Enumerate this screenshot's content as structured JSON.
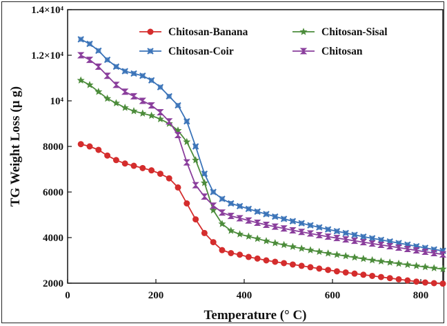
{
  "chart_data": {
    "type": "line",
    "title": "",
    "xlabel": "Temperature (° C)",
    "ylabel": "TG Weight Loss (µ g)",
    "xlim": [
      0,
      850
    ],
    "ylim": [
      2000,
      14000
    ],
    "xticks": [
      0,
      200,
      400,
      600,
      800
    ],
    "xtick_labels": [
      "0",
      "200",
      "400",
      "600",
      "800"
    ],
    "yticks": [
      2000,
      4000,
      6000,
      8000,
      10000,
      12000,
      14000
    ],
    "ytick_labels": [
      "2000",
      "4000",
      "6000",
      "8000",
      "10⁴",
      "1.2×10⁴",
      "1.4×10⁴"
    ],
    "grid": false,
    "legend_position": "top-right",
    "series": [
      {
        "name": "Chitosan-Banana",
        "color": "#d42d2d",
        "marker": "circle",
        "points": [
          [
            30,
            8100
          ],
          [
            50,
            8000
          ],
          [
            70,
            7850
          ],
          [
            90,
            7600
          ],
          [
            110,
            7400
          ],
          [
            130,
            7250
          ],
          [
            150,
            7150
          ],
          [
            170,
            7050
          ],
          [
            190,
            6950
          ],
          [
            210,
            6800
          ],
          [
            230,
            6600
          ],
          [
            250,
            6200
          ],
          [
            270,
            5500
          ],
          [
            290,
            4800
          ],
          [
            310,
            4200
          ],
          [
            330,
            3800
          ],
          [
            350,
            3450
          ],
          [
            370,
            3320
          ],
          [
            390,
            3250
          ],
          [
            410,
            3150
          ],
          [
            430,
            3080
          ],
          [
            450,
            3000
          ],
          [
            470,
            2940
          ],
          [
            490,
            2880
          ],
          [
            510,
            2820
          ],
          [
            530,
            2760
          ],
          [
            550,
            2700
          ],
          [
            570,
            2640
          ],
          [
            590,
            2580
          ],
          [
            610,
            2520
          ],
          [
            630,
            2470
          ],
          [
            650,
            2420
          ],
          [
            670,
            2370
          ],
          [
            690,
            2320
          ],
          [
            710,
            2270
          ],
          [
            730,
            2220
          ],
          [
            750,
            2170
          ],
          [
            770,
            2120
          ],
          [
            790,
            2070
          ],
          [
            810,
            2030
          ],
          [
            830,
            2000
          ],
          [
            850,
            1980
          ]
        ]
      },
      {
        "name": "Chitosan-Coir",
        "color": "#3a73b8",
        "marker": "x-square",
        "points": [
          [
            30,
            12700
          ],
          [
            50,
            12500
          ],
          [
            70,
            12200
          ],
          [
            90,
            11800
          ],
          [
            110,
            11500
          ],
          [
            130,
            11300
          ],
          [
            150,
            11200
          ],
          [
            170,
            11100
          ],
          [
            190,
            10900
          ],
          [
            210,
            10600
          ],
          [
            230,
            10200
          ],
          [
            250,
            9800
          ],
          [
            270,
            9100
          ],
          [
            290,
            8000
          ],
          [
            310,
            6800
          ],
          [
            330,
            6000
          ],
          [
            350,
            5700
          ],
          [
            370,
            5500
          ],
          [
            390,
            5380
          ],
          [
            410,
            5260
          ],
          [
            430,
            5140
          ],
          [
            450,
            5030
          ],
          [
            470,
            4920
          ],
          [
            490,
            4820
          ],
          [
            510,
            4720
          ],
          [
            530,
            4630
          ],
          [
            550,
            4540
          ],
          [
            570,
            4450
          ],
          [
            590,
            4360
          ],
          [
            610,
            4280
          ],
          [
            630,
            4200
          ],
          [
            650,
            4120
          ],
          [
            670,
            4040
          ],
          [
            690,
            3970
          ],
          [
            710,
            3900
          ],
          [
            730,
            3830
          ],
          [
            750,
            3760
          ],
          [
            770,
            3690
          ],
          [
            790,
            3620
          ],
          [
            810,
            3550
          ],
          [
            830,
            3480
          ],
          [
            850,
            3420
          ]
        ]
      },
      {
        "name": "Chitosan-Sisal",
        "color": "#4c8c3b",
        "marker": "star",
        "points": [
          [
            30,
            10900
          ],
          [
            50,
            10700
          ],
          [
            70,
            10400
          ],
          [
            90,
            10100
          ],
          [
            110,
            9900
          ],
          [
            130,
            9700
          ],
          [
            150,
            9550
          ],
          [
            170,
            9450
          ],
          [
            190,
            9350
          ],
          [
            210,
            9200
          ],
          [
            230,
            9000
          ],
          [
            250,
            8700
          ],
          [
            270,
            8200
          ],
          [
            290,
            7400
          ],
          [
            310,
            6400
          ],
          [
            330,
            5200
          ],
          [
            350,
            4600
          ],
          [
            370,
            4300
          ],
          [
            390,
            4150
          ],
          [
            410,
            4050
          ],
          [
            430,
            3950
          ],
          [
            450,
            3850
          ],
          [
            470,
            3760
          ],
          [
            490,
            3680
          ],
          [
            510,
            3600
          ],
          [
            530,
            3520
          ],
          [
            550,
            3450
          ],
          [
            570,
            3380
          ],
          [
            590,
            3310
          ],
          [
            610,
            3250
          ],
          [
            630,
            3190
          ],
          [
            650,
            3130
          ],
          [
            670,
            3070
          ],
          [
            690,
            3010
          ],
          [
            710,
            2960
          ],
          [
            730,
            2910
          ],
          [
            750,
            2860
          ],
          [
            770,
            2810
          ],
          [
            790,
            2760
          ],
          [
            810,
            2710
          ],
          [
            830,
            2660
          ],
          [
            850,
            2620
          ]
        ]
      },
      {
        "name": "Chitosan",
        "color": "#8a3e9c",
        "marker": "hourglass",
        "points": [
          [
            30,
            12000
          ],
          [
            50,
            11800
          ],
          [
            70,
            11500
          ],
          [
            90,
            11100
          ],
          [
            110,
            10700
          ],
          [
            130,
            10400
          ],
          [
            150,
            10200
          ],
          [
            170,
            10000
          ],
          [
            190,
            9800
          ],
          [
            210,
            9500
          ],
          [
            230,
            9100
          ],
          [
            250,
            8500
          ],
          [
            270,
            7300
          ],
          [
            290,
            6300
          ],
          [
            310,
            5800
          ],
          [
            330,
            5400
          ],
          [
            350,
            5100
          ],
          [
            370,
            4950
          ],
          [
            390,
            4850
          ],
          [
            410,
            4750
          ],
          [
            430,
            4650
          ],
          [
            450,
            4560
          ],
          [
            470,
            4480
          ],
          [
            490,
            4400
          ],
          [
            510,
            4320
          ],
          [
            530,
            4250
          ],
          [
            550,
            4180
          ],
          [
            570,
            4110
          ],
          [
            590,
            4040
          ],
          [
            610,
            3980
          ],
          [
            630,
            3920
          ],
          [
            650,
            3860
          ],
          [
            670,
            3800
          ],
          [
            690,
            3740
          ],
          [
            710,
            3680
          ],
          [
            730,
            3620
          ],
          [
            750,
            3560
          ],
          [
            770,
            3500
          ],
          [
            790,
            3440
          ],
          [
            810,
            3380
          ],
          [
            830,
            3320
          ],
          [
            850,
            3260
          ]
        ]
      }
    ]
  }
}
